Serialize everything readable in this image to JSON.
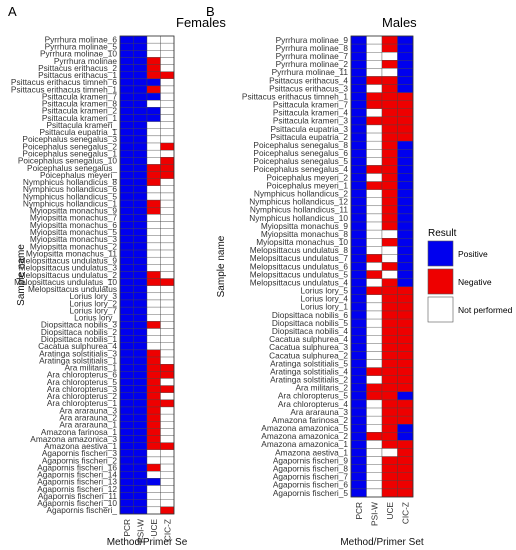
{
  "chart_data": [
    {
      "type": "heatmap",
      "panel": "A",
      "title": "Females",
      "xlabel": "Method/Primer Se",
      "ylabel": "Sample name",
      "columns": [
        "PCR",
        "PSI-W",
        "UCE",
        "CIC-Z"
      ],
      "rows": [
        "Pyrrhura molinae_6",
        "Pyrrhura molinae_5",
        "Pyrrhura molinae_10",
        "Pyrrhura molinae",
        "Psittacus erithacus_2",
        "Psittacus erithacus_1",
        "Psittacus erithacus timneh_6",
        "Psittacus erithacus timneh_1",
        "Psittacula krameri_7",
        "Psittacula krameri_8",
        "Psittacula krameri_2",
        "Psittacula krameri_1",
        "Psittacula krameri_",
        "Psittacula eupatria_1",
        "Poicephalus senegalus_3",
        "Poicephalus senegalus_2",
        "Poicephalus senegalus_1",
        "Poicephalus senegalus_10",
        "Poicephalus senegalus_",
        "Poicephalus meyeri_",
        "Nymphicus hollandicus_8",
        "Nymphicus hollandicus_6",
        "Nymphicus hollandicus_5",
        "Nymphicus hollandicus_1",
        "Myiopsitta monachus_9",
        "Myiopsitta monachus_7",
        "Myiopsitta monachus_6",
        "Myiopsitta monachus_5",
        "Myiopsitta monachus_3",
        "Myiopsitta monachus_2",
        "Myiopsitta monachus_11",
        "Melopsittacus undulatus_9",
        "Melopsittacus undulatus_3",
        "Melopsittacus undulatus_2",
        "Melopsittacus undulatus_10",
        "Melopsittacus undulatus",
        "Lorius lory_3",
        "Lorius lory_2",
        "Lorius lory_7",
        "Lorius lory_",
        "Diopsittaca nobilis_3",
        "Diopsittaca nobilis_2",
        "Diopsittaca nobilis_1",
        "Cacatua sulphurea_4",
        "Aratinga solstitialis_3",
        "Aratinga solstitialis_1",
        "Ara militaris_1",
        "Ara chloropterus_6",
        "Ara chloropterus_5",
        "Ara chloropterus_3",
        "Ara chloropterus_2",
        "Ara chloropterus_1",
        "Ara ararauna_3",
        "Ara ararauna_2",
        "Ara ararauna_1",
        "Amazona farinosa_1",
        "Amazona amazonica_3",
        "Amazona aestiva_1",
        "Agapornis fischeri_3",
        "Agapornis fischeri_2",
        "Agapornis fischeri_16",
        "Agapornis fischeri_14",
        "Agapornis fischeri_13",
        "Agapornis fischeri_12",
        "Agapornis fischeri_11",
        "Agapornis fischeri_10",
        "Agapornis fischeri_"
      ],
      "legend": [
        {
          "key": "P",
          "label": "Positive",
          "color": "#0000ee"
        },
        {
          "key": "N",
          "label": "Negative",
          "color": "#ee0000"
        },
        {
          "key": "W",
          "label": "Not performed",
          "color": "#ffffff"
        }
      ],
      "legend_title": "Result",
      "values": [
        "PPWW",
        "PPWW",
        "PPWW",
        "PPNW",
        "PPNW",
        "PPNN",
        "PPPW",
        "PPNW",
        "PPPW",
        "PPWW",
        "PPPW",
        "PPPW",
        "PPWW",
        "PPWW",
        "PPWW",
        "PPWN",
        "PPWW",
        "PPWN",
        "PPNN",
        "PPNN",
        "PPNW",
        "PPWW",
        "PPWW",
        "PPNW",
        "PPNW",
        "PPWW",
        "PPWW",
        "PPWW",
        "PPWW",
        "PPWW",
        "PPWW",
        "PPWW",
        "PPWW",
        "PPNW",
        "PPNN",
        "PPWW",
        "PPWW",
        "PPWW",
        "PPWW",
        "PPWW",
        "PPNW",
        "PPWW",
        "PPWW",
        "PPWW",
        "PPNW",
        "PPNW",
        "PPNN",
        "PPNN",
        "PPNW",
        "PPNN",
        "PPNW",
        "PPNN",
        "PPNW",
        "PPNW",
        "PPNW",
        "PPNW",
        "PPNW",
        "PPNN",
        "PPWW",
        "PPWW",
        "PPNW",
        "PPWW",
        "PPPW",
        "PPWW",
        "PPWW",
        "PPWW",
        "PPWN"
      ]
    },
    {
      "type": "heatmap",
      "panel": "B",
      "title": "Males",
      "xlabel": "Method/Primer Set",
      "ylabel": "Sample name",
      "columns": [
        "PCR",
        "PSI-W",
        "UCE",
        "CIC-Z"
      ],
      "rows": [
        "Pyrrhura molinae_9",
        "Pyrrhura molinae_8",
        "Pyrrhura molinae_7",
        "Pyrrhura molinae_2",
        "Pyrrhura molinae_11",
        "Psittacus erithacus_4",
        "Psittacus erithacus_3",
        "Psittacus erithacus timneh_1",
        "Psittacula krameri_7",
        "Psittacula krameri_4",
        "Psittacula krameri_3",
        "Psittacula eupatria_3",
        "Psittacula eupatria_2",
        "Poicephalus senegalus_8",
        "Poicephalus senegalus_6",
        "Poicephalus senegalus_5",
        "Poicephalus senegalus_4",
        "Poicephalus meyeri_2",
        "Poicephalus meyeri_1",
        "Nymphicus hollandicus_2",
        "Nymphicus hollandicus_12",
        "Nymphicus hollandicus_11",
        "Nymphicus hollandicus_10",
        "Myiopsitta monachus_9",
        "Myiopsitta monachus_8",
        "Myiopsitta monachus_10",
        "Melopsittacus undulatus_8",
        "Melopsittacus undulatus_7",
        "Melopsittacus undulatus_6",
        "Melopsittacus undulatus_5",
        "Melopsittacus undulatus_4",
        "Lorius lory_5",
        "Lorius lory_4",
        "Lorius lory_1",
        "Diopsittaca nobilis_6",
        "Diopsittaca nobilis_5",
        "Diopsittaca nobilis_4",
        "Cacatua sulphurea_4",
        "Cacatua sulphurea_3",
        "Cacatua sulphurea_2",
        "Aratinga solstitialis_5",
        "Aratinga solstitialis_4",
        "Aratinga solstitialis_2",
        "Ara militaris_2",
        "Ara chloropterus_5",
        "Ara chloropterus_4",
        "Ara ararauna_3",
        "Amazona farinosa_2",
        "Amazona amazonica_5",
        "Amazona amazonica_2",
        "Amazona amazonica_1",
        "Amazona aestiva_1",
        "Agapornis fischeri_9",
        "Agapornis fischeri_8",
        "Agapornis fischeri_7",
        "Agapornis fischeri_6",
        "Agapornis fischeri_5"
      ],
      "legend": [
        {
          "key": "P",
          "label": "Positive",
          "color": "#0000ee"
        },
        {
          "key": "N",
          "label": "Negative",
          "color": "#ee0000"
        },
        {
          "key": "W",
          "label": "Not performed",
          "color": "#ffffff"
        }
      ],
      "legend_title": "Result",
      "values": [
        "PWNP",
        "PWNP",
        "PWWP",
        "PWNP",
        "PWWP",
        "PNNP",
        "PWNP",
        "PNNN",
        "PNNN",
        "PWNN",
        "PNNN",
        "PWNN",
        "PWNN",
        "PWNP",
        "PWNP",
        "PWNP",
        "PNNP",
        "PWNP",
        "PNNP",
        "PWNP",
        "PWNP",
        "PWNP",
        "PWNP",
        "PWNP",
        "PWWP",
        "PWNP",
        "PWWP",
        "PNWP",
        "PWNP",
        "PNWP",
        "PWNP",
        "PNNN",
        "PWNN",
        "PWNN",
        "PWNN",
        "PWNN",
        "PWNN",
        "PWNN",
        "PWNN",
        "PWNN",
        "PWNN",
        "PNNN",
        "PWNN",
        "PNNN",
        "PNNP",
        "PWNN",
        "PWNN",
        "PWNN",
        "PWNP",
        "PNNP",
        "PWNN",
        "PWWN",
        "PWNN",
        "PWNN",
        "PWNN",
        "PWNN",
        "PWNN"
      ]
    }
  ]
}
